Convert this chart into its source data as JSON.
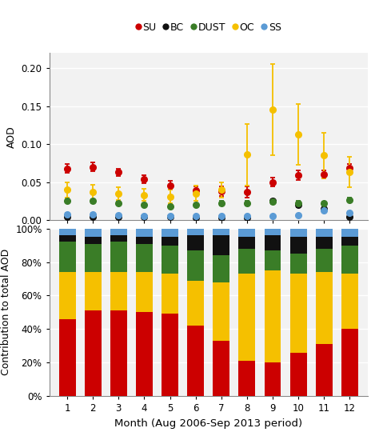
{
  "months": [
    1,
    2,
    3,
    4,
    5,
    6,
    7,
    8,
    9,
    10,
    11,
    12
  ],
  "scatter": {
    "SU": {
      "mean": [
        0.068,
        0.07,
        0.063,
        0.054,
        0.046,
        0.039,
        0.038,
        0.037,
        0.05,
        0.059,
        0.06,
        0.069
      ],
      "std": [
        0.006,
        0.006,
        0.005,
        0.005,
        0.006,
        0.005,
        0.006,
        0.007,
        0.006,
        0.006,
        0.005,
        0.005
      ],
      "color": "#cc0000"
    },
    "BC": {
      "mean": [
        0.005,
        0.005,
        0.005,
        0.004,
        0.004,
        0.003,
        0.003,
        0.003,
        0.025,
        0.02,
        0.015,
        0.005
      ],
      "std": [
        0.001,
        0.001,
        0.001,
        0.001,
        0.001,
        0.001,
        0.001,
        0.001,
        0.003,
        0.003,
        0.002,
        0.001
      ],
      "color": "#111111"
    },
    "DUST": {
      "mean": [
        0.026,
        0.025,
        0.022,
        0.02,
        0.018,
        0.02,
        0.022,
        0.022,
        0.024,
        0.022,
        0.022,
        0.027
      ],
      "std": [
        0.003,
        0.003,
        0.002,
        0.002,
        0.002,
        0.002,
        0.003,
        0.003,
        0.003,
        0.003,
        0.002,
        0.003
      ],
      "color": "#3a7d27"
    },
    "OC": {
      "mean": [
        0.04,
        0.037,
        0.035,
        0.033,
        0.031,
        0.035,
        0.04,
        0.086,
        0.145,
        0.113,
        0.085,
        0.063
      ],
      "std": [
        0.01,
        0.01,
        0.008,
        0.008,
        0.009,
        0.01,
        0.01,
        0.04,
        0.06,
        0.04,
        0.03,
        0.02
      ],
      "color": "#f5c000"
    },
    "SS": {
      "mean": [
        0.008,
        0.008,
        0.007,
        0.006,
        0.006,
        0.006,
        0.006,
        0.006,
        0.006,
        0.007,
        0.013,
        0.01
      ],
      "std": [
        0.002,
        0.002,
        0.001,
        0.001,
        0.001,
        0.001,
        0.001,
        0.001,
        0.001,
        0.001,
        0.002,
        0.002
      ],
      "color": "#5b9bd5"
    }
  },
  "bar": {
    "SU": [
      46,
      51,
      51,
      50,
      49,
      42,
      33,
      21,
      20,
      26,
      31,
      40
    ],
    "OC": [
      28,
      23,
      23,
      24,
      24,
      27,
      35,
      52,
      55,
      47,
      43,
      33
    ],
    "DUST": [
      18,
      17,
      18,
      17,
      17,
      18,
      16,
      15,
      12,
      12,
      14,
      17
    ],
    "BC": [
      4,
      4,
      4,
      4,
      5,
      9,
      12,
      7,
      9,
      10,
      7,
      5
    ],
    "SS": [
      4,
      5,
      4,
      5,
      5,
      4,
      4,
      5,
      4,
      5,
      5,
      5
    ]
  },
  "bar_colors": {
    "SU": "#cc0000",
    "OC": "#f5c000",
    "DUST": "#3a7d27",
    "BC": "#111111",
    "SS": "#5b9bd5"
  },
  "legend_order": [
    "SU",
    "BC",
    "DUST",
    "OC",
    "SS"
  ],
  "bar_order": [
    "SU",
    "OC",
    "DUST",
    "BC",
    "SS"
  ],
  "scatter_ylim": [
    0.0,
    0.22
  ],
  "bar_ylim": [
    0,
    100
  ],
  "xlabel": "Month (Aug 2006-Sep 2013 period)",
  "ylabel_top": "AOD",
  "ylabel_bot": "Contribution to total AOD",
  "bg_color": "#f2f2f2",
  "fig_bg": "#ffffff"
}
